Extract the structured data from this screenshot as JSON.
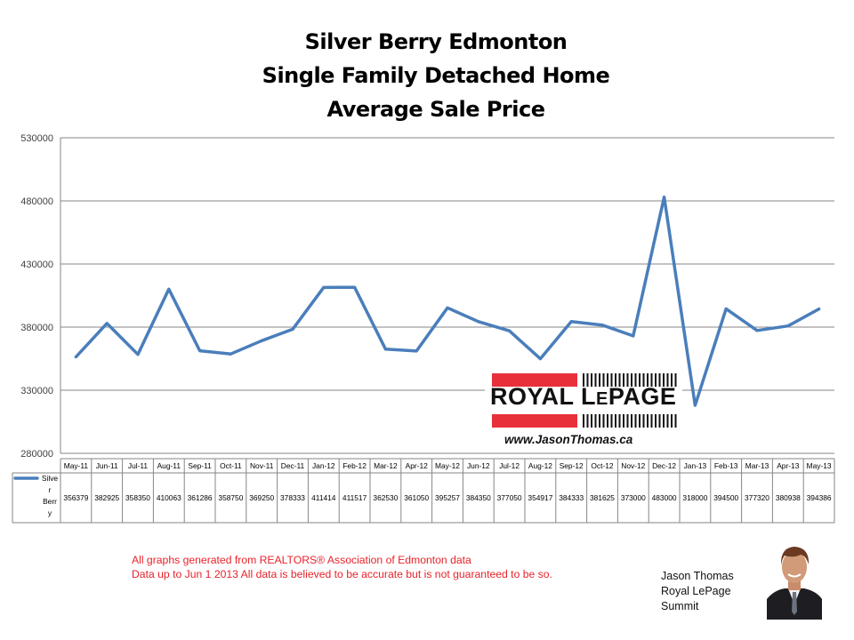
{
  "chart_data": {
    "type": "line",
    "title": [
      "Silver Berry Edmonton",
      "Single Family Detached Home",
      "Average Sale Price"
    ],
    "xlabel": "",
    "ylabel": "",
    "ylim": [
      280000,
      530000
    ],
    "yticks": [
      280000,
      330000,
      380000,
      430000,
      480000,
      530000
    ],
    "ytick_labels": [
      "280000",
      "330000",
      "380000",
      "430000",
      "480000",
      "530000"
    ],
    "grid": true,
    "categories": [
      "May-11",
      "Jun-11",
      "Jul-11",
      "Aug-11",
      "Sep-11",
      "Oct-11",
      "Nov-11",
      "Dec-11",
      "Jan-12",
      "Feb-12",
      "Mar-12",
      "Apr-12",
      "May-12",
      "Jun-12",
      "Jul-12",
      "Aug-12",
      "Sep-12",
      "Oct-12",
      "Nov-12",
      "Dec-12",
      "Jan-13",
      "Feb-13",
      "Mar-13",
      "Apr-13",
      "May-13"
    ],
    "series": [
      {
        "name": "Silver Berry",
        "legend_label_lines": [
          "Silve",
          "r",
          "Berr",
          "y"
        ],
        "color": "#4a7ebb",
        "values": [
          356379,
          382925,
          358350,
          410063,
          361286,
          358750,
          369250,
          378333,
          411414,
          411517,
          362530,
          361050,
          395257,
          384350,
          377050,
          354917,
          384333,
          381625,
          373000,
          483000,
          318000,
          394500,
          377320,
          380938,
          394386
        ]
      }
    ],
    "data_table": true,
    "legend": "data-table-left"
  },
  "logo": {
    "brand_main": "ROYAL L",
    "brand_small_e": "E",
    "brand_end": "PAGE",
    "website": "www.JasonThomas.ca",
    "brand_red": "#e8303a"
  },
  "footer": {
    "line1": "All graphs generated from REALTORS® Association of Edmonton data",
    "line2": "Data up to  Jun 1 2013  All data is believed to be accurate but is not guaranteed to be so.",
    "color": "#e8232a"
  },
  "author": {
    "name": "Jason Thomas",
    "company": "Royal LePage",
    "office": "Summit"
  }
}
